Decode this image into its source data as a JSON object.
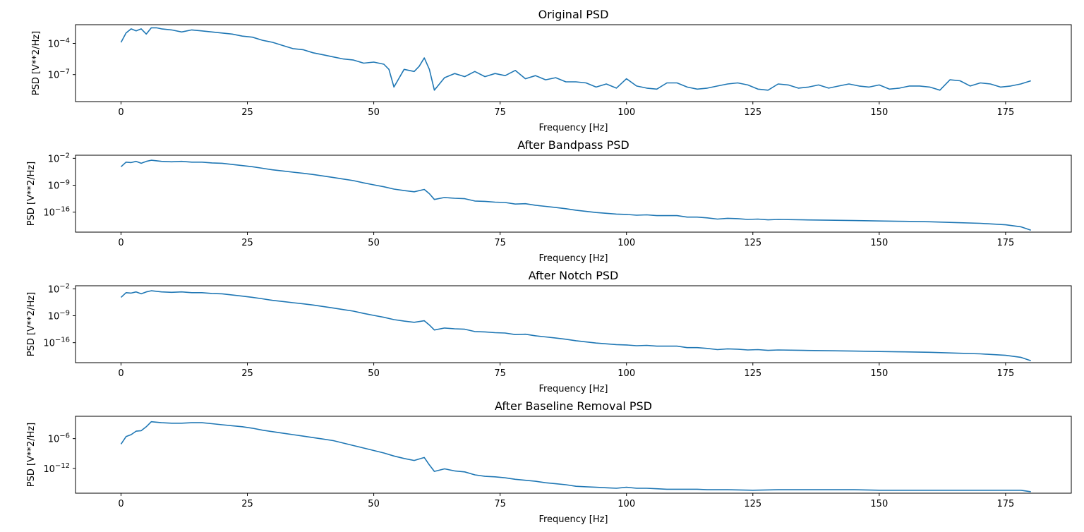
{
  "figure": {
    "background": "#ffffff"
  },
  "chart_data": [
    {
      "type": "line",
      "title": "Original PSD",
      "xlabel": "Frequency [Hz]",
      "ylabel": "PSD [V**2/Hz]",
      "yscale": "log",
      "xlim": [
        -9,
        188
      ],
      "ylim_exp": [
        -9.6,
        -2.2
      ],
      "xticks": [
        0,
        25,
        50,
        75,
        100,
        125,
        150,
        175
      ],
      "yticks": [
        {
          "exp": -4,
          "label": "10",
          "sup": "−4"
        },
        {
          "exp": -7,
          "label": "10",
          "sup": "−7"
        }
      ],
      "grid": false,
      "color": "#1f77b4",
      "series": [
        {
          "x": [
            0,
            1,
            2,
            3,
            4,
            5,
            6,
            7,
            8,
            10,
            12,
            14,
            16,
            18,
            20,
            22,
            24,
            26,
            28,
            30,
            32,
            34,
            36,
            38,
            40,
            42,
            44,
            46,
            48,
            50,
            52,
            53,
            54,
            56,
            58,
            59,
            60,
            61,
            62,
            64,
            66,
            68,
            70,
            72,
            74,
            76,
            78,
            80,
            82,
            84,
            86,
            88,
            90,
            92,
            94,
            96,
            98,
            100,
            102,
            104,
            106,
            108,
            110,
            112,
            114,
            116,
            118,
            120,
            122,
            124,
            126,
            128,
            130,
            132,
            134,
            136,
            138,
            140,
            142,
            144,
            146,
            148,
            150,
            152,
            154,
            156,
            158,
            160,
            162,
            164,
            166,
            168,
            170,
            172,
            174,
            176,
            178,
            180
          ],
          "y": [
            -3.9,
            -3.0,
            -2.6,
            -2.8,
            -2.6,
            -3.1,
            -2.5,
            -2.5,
            -2.6,
            -2.7,
            -2.9,
            -2.7,
            -2.8,
            -2.9,
            -3.0,
            -3.1,
            -3.3,
            -3.4,
            -3.7,
            -3.9,
            -4.2,
            -4.5,
            -4.6,
            -4.9,
            -5.1,
            -5.3,
            -5.5,
            -5.6,
            -5.9,
            -5.8,
            -6.0,
            -6.5,
            -8.2,
            -6.5,
            -6.7,
            -6.2,
            -5.4,
            -6.5,
            -8.5,
            -7.3,
            -6.9,
            -7.2,
            -6.7,
            -7.2,
            -6.9,
            -7.1,
            -6.6,
            -7.4,
            -7.1,
            -7.5,
            -7.3,
            -7.7,
            -7.7,
            -7.8,
            -8.2,
            -7.9,
            -8.3,
            -7.4,
            -8.1,
            -8.3,
            -8.4,
            -7.8,
            -7.8,
            -8.2,
            -8.4,
            -8.3,
            -8.1,
            -7.9,
            -7.8,
            -8.0,
            -8.4,
            -8.5,
            -7.9,
            -8.0,
            -8.3,
            -8.2,
            -8.0,
            -8.3,
            -8.1,
            -7.9,
            -8.1,
            -8.2,
            -8.0,
            -8.4,
            -8.3,
            -8.1,
            -8.1,
            -8.2,
            -8.5,
            -7.5,
            -7.6,
            -8.1,
            -7.8,
            -7.9,
            -8.2,
            -8.1,
            -7.9,
            -7.6
          ]
        }
      ]
    },
    {
      "type": "line",
      "title": "After Bandpass PSD",
      "xlabel": "Frequency [Hz]",
      "ylabel": "PSD [V**2/Hz]",
      "yscale": "log",
      "xlim": [
        -9,
        188
      ],
      "ylim_exp": [
        -21.2,
        -1.2
      ],
      "xticks": [
        0,
        25,
        50,
        75,
        100,
        125,
        150,
        175
      ],
      "yticks": [
        {
          "exp": -2,
          "label": "10",
          "sup": "−2"
        },
        {
          "exp": -9,
          "label": "10",
          "sup": "−9"
        },
        {
          "exp": -16,
          "label": "10",
          "sup": "−16"
        }
      ],
      "grid": false,
      "color": "#1f77b4",
      "series": [
        {
          "x": [
            0,
            1,
            2,
            3,
            4,
            5,
            6,
            8,
            10,
            12,
            14,
            16,
            18,
            20,
            22,
            24,
            26,
            28,
            30,
            32,
            34,
            36,
            38,
            40,
            42,
            44,
            46,
            48,
            50,
            52,
            54,
            56,
            58,
            60,
            61,
            62,
            64,
            66,
            68,
            70,
            72,
            74,
            76,
            78,
            80,
            82,
            84,
            86,
            88,
            90,
            92,
            94,
            96,
            98,
            100,
            102,
            104,
            106,
            108,
            110,
            112,
            114,
            116,
            118,
            120,
            122,
            124,
            126,
            128,
            130,
            135,
            140,
            145,
            150,
            155,
            160,
            165,
            170,
            175,
            178,
            180
          ],
          "y": [
            -4.2,
            -3.0,
            -3.1,
            -2.8,
            -3.3,
            -2.8,
            -2.5,
            -2.8,
            -2.9,
            -2.8,
            -3.0,
            -3.0,
            -3.2,
            -3.3,
            -3.6,
            -3.9,
            -4.2,
            -4.6,
            -5.0,
            -5.3,
            -5.6,
            -5.9,
            -6.2,
            -6.6,
            -7.0,
            -7.4,
            -7.8,
            -8.4,
            -8.9,
            -9.4,
            -10.0,
            -10.4,
            -10.7,
            -10.1,
            -11.2,
            -12.7,
            -12.2,
            -12.4,
            -12.5,
            -13.1,
            -13.2,
            -13.4,
            -13.5,
            -13.9,
            -13.8,
            -14.2,
            -14.5,
            -14.8,
            -15.1,
            -15.5,
            -15.8,
            -16.1,
            -16.3,
            -16.5,
            -16.6,
            -16.8,
            -16.7,
            -16.9,
            -16.9,
            -16.9,
            -17.3,
            -17.3,
            -17.5,
            -17.8,
            -17.6,
            -17.7,
            -17.9,
            -17.8,
            -18.0,
            -17.9,
            -18.0,
            -18.1,
            -18.2,
            -18.3,
            -18.4,
            -18.5,
            -18.7,
            -18.9,
            -19.3,
            -19.8,
            -20.7
          ]
        }
      ]
    },
    {
      "type": "line",
      "title": "After Notch PSD",
      "xlabel": "Frequency [Hz]",
      "ylabel": "PSD [V**2/Hz]",
      "yscale": "log",
      "xlim": [
        -9,
        188
      ],
      "ylim_exp": [
        -21.2,
        -1.2
      ],
      "xticks": [
        0,
        25,
        50,
        75,
        100,
        125,
        150,
        175
      ],
      "yticks": [
        {
          "exp": -2,
          "label": "10",
          "sup": "−2"
        },
        {
          "exp": -9,
          "label": "10",
          "sup": "−9"
        },
        {
          "exp": -16,
          "label": "10",
          "sup": "−16"
        }
      ],
      "grid": false,
      "color": "#1f77b4",
      "series": [
        {
          "x": [
            0,
            1,
            2,
            3,
            4,
            5,
            6,
            8,
            10,
            12,
            14,
            16,
            18,
            20,
            22,
            24,
            26,
            28,
            30,
            32,
            34,
            36,
            38,
            40,
            42,
            44,
            46,
            48,
            50,
            52,
            54,
            56,
            58,
            60,
            61,
            62,
            64,
            66,
            68,
            70,
            72,
            74,
            76,
            78,
            80,
            82,
            84,
            86,
            88,
            90,
            92,
            94,
            96,
            98,
            100,
            102,
            104,
            106,
            108,
            110,
            112,
            114,
            116,
            118,
            120,
            122,
            124,
            126,
            128,
            130,
            135,
            140,
            145,
            150,
            155,
            160,
            165,
            170,
            175,
            178,
            180
          ],
          "y": [
            -4.2,
            -3.0,
            -3.1,
            -2.8,
            -3.3,
            -2.8,
            -2.5,
            -2.8,
            -2.9,
            -2.8,
            -3.0,
            -3.0,
            -3.2,
            -3.3,
            -3.6,
            -3.9,
            -4.2,
            -4.6,
            -5.0,
            -5.3,
            -5.6,
            -5.9,
            -6.2,
            -6.6,
            -7.0,
            -7.4,
            -7.8,
            -8.4,
            -8.9,
            -9.4,
            -10.0,
            -10.4,
            -10.7,
            -10.3,
            -11.4,
            -12.7,
            -12.2,
            -12.4,
            -12.5,
            -13.1,
            -13.2,
            -13.4,
            -13.5,
            -13.9,
            -13.8,
            -14.2,
            -14.5,
            -14.8,
            -15.1,
            -15.5,
            -15.8,
            -16.1,
            -16.3,
            -16.5,
            -16.6,
            -16.8,
            -16.7,
            -16.9,
            -16.9,
            -16.9,
            -17.3,
            -17.3,
            -17.5,
            -17.8,
            -17.6,
            -17.7,
            -17.9,
            -17.8,
            -18.0,
            -17.9,
            -18.0,
            -18.1,
            -18.2,
            -18.3,
            -18.4,
            -18.5,
            -18.7,
            -18.9,
            -19.3,
            -19.8,
            -20.7
          ]
        }
      ]
    },
    {
      "type": "line",
      "title": "After Baseline Removal PSD",
      "xlabel": "Frequency [Hz]",
      "ylabel": "PSD [V**2/Hz]",
      "yscale": "log",
      "xlim": [
        -9,
        188
      ],
      "ylim_exp": [
        -17.0,
        -1.5
      ],
      "xticks": [
        0,
        25,
        50,
        75,
        100,
        125,
        150,
        175
      ],
      "yticks": [
        {
          "exp": -6,
          "label": "10",
          "sup": "−6"
        },
        {
          "exp": -12,
          "label": "10",
          "sup": "−12"
        }
      ],
      "grid": false,
      "color": "#1f77b4",
      "series": [
        {
          "x": [
            0,
            1,
            2,
            3,
            4,
            5,
            6,
            8,
            10,
            12,
            14,
            16,
            18,
            20,
            22,
            24,
            26,
            28,
            30,
            32,
            34,
            36,
            38,
            40,
            42,
            44,
            46,
            48,
            50,
            52,
            54,
            56,
            58,
            60,
            61,
            62,
            64,
            66,
            68,
            70,
            72,
            74,
            76,
            78,
            80,
            82,
            84,
            86,
            88,
            90,
            92,
            94,
            96,
            98,
            100,
            102,
            104,
            106,
            108,
            110,
            112,
            114,
            116,
            118,
            120,
            125,
            130,
            135,
            140,
            145,
            150,
            155,
            160,
            165,
            170,
            175,
            178,
            180
          ],
          "y": [
            -7.1,
            -5.6,
            -5.2,
            -4.5,
            -4.4,
            -3.6,
            -2.6,
            -2.8,
            -2.9,
            -2.9,
            -2.8,
            -2.8,
            -3.0,
            -3.2,
            -3.4,
            -3.6,
            -3.9,
            -4.3,
            -4.6,
            -4.9,
            -5.2,
            -5.5,
            -5.8,
            -6.1,
            -6.4,
            -6.9,
            -7.4,
            -7.9,
            -8.4,
            -8.9,
            -9.5,
            -10.0,
            -10.4,
            -9.8,
            -11.3,
            -12.6,
            -12.1,
            -12.5,
            -12.7,
            -13.3,
            -13.6,
            -13.7,
            -13.9,
            -14.2,
            -14.4,
            -14.6,
            -14.9,
            -15.1,
            -15.3,
            -15.6,
            -15.7,
            -15.8,
            -15.9,
            -16.0,
            -15.8,
            -16.0,
            -16.0,
            -16.1,
            -16.2,
            -16.2,
            -16.2,
            -16.2,
            -16.3,
            -16.3,
            -16.3,
            -16.4,
            -16.3,
            -16.3,
            -16.3,
            -16.3,
            -16.4,
            -16.4,
            -16.4,
            -16.4,
            -16.4,
            -16.4,
            -16.4,
            -16.7
          ]
        }
      ]
    }
  ]
}
